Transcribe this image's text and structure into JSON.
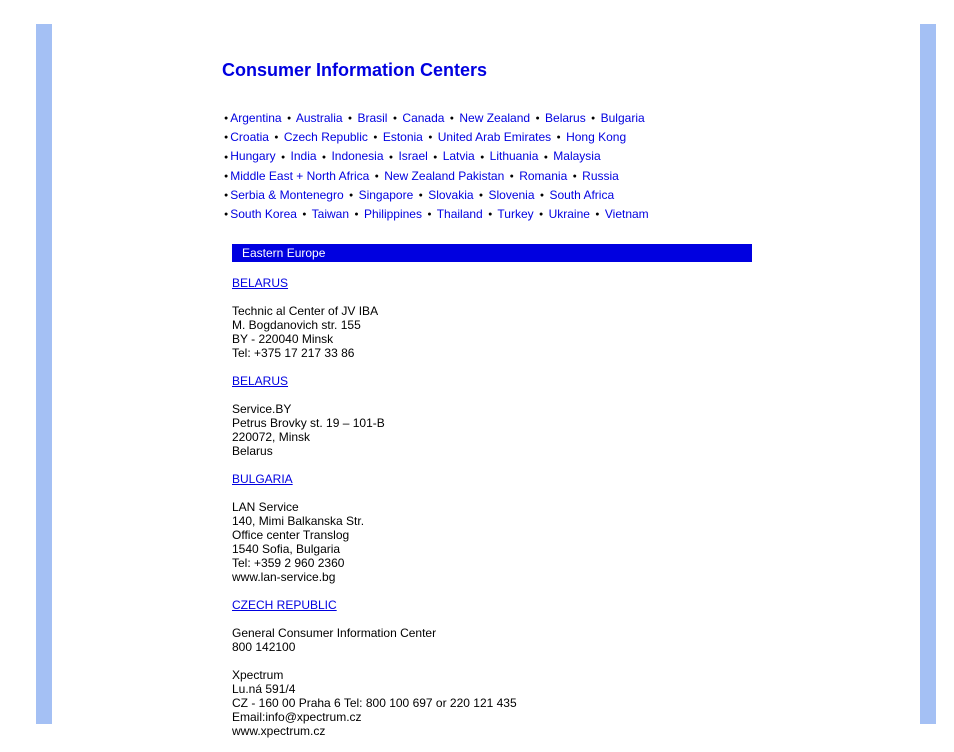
{
  "colors": {
    "link": "#0000e0",
    "band_bg": "#0000e0",
    "band_text": "#ffffff",
    "stripe": "#a4c0f4",
    "body_text": "#000000",
    "page_bg": "#ffffff"
  },
  "typography": {
    "base_family": "Arial, Helvetica, sans-serif",
    "base_size_pt": 9,
    "title_size_pt": 14,
    "title_weight": "bold"
  },
  "title": "Consumer Information Centers",
  "country_rows": [
    [
      "Argentina",
      "Australia",
      "Brasil",
      "Canada",
      "New Zealand",
      "Belarus",
      "Bulgaria"
    ],
    [
      "Croatia",
      "Czech Republic",
      "Estonia",
      "United Arab Emirates",
      "Hong Kong"
    ],
    [
      "Hungary",
      "India",
      "Indonesia",
      "Israel",
      "Latvia",
      "Lithuania",
      "Malaysia"
    ],
    [
      "Middle East + North Africa",
      "New Zealand Pakistan",
      "Romania",
      "Russia"
    ],
    [
      "Serbia & Montenegro",
      "Singapore",
      "Slovakia",
      "Slovenia",
      "South Africa"
    ],
    [
      "South Korea",
      "Taiwan",
      "Philippines",
      "Thailand",
      "Turkey",
      "Ukraine",
      "Vietnam"
    ]
  ],
  "region_label": "Eastern Europe",
  "entries": [
    {
      "heading": "BELARUS",
      "body": "Technic al Center of JV IBA\nM. Bogdanovich str. 155\nBY - 220040 Minsk\nTel: +375 17 217 33 86"
    },
    {
      "heading": "BELARUS",
      "body": "Service.BY\nPetrus Brovky st. 19 – 101-B\n220072, Minsk\nBelarus"
    },
    {
      "heading": "BULGARIA",
      "body": "LAN Service\n140, Mimi Balkanska Str.\nOffice center Translog\n1540 Sofia, Bulgaria\nTel: +359 2 960 2360\nwww.lan-service.bg"
    },
    {
      "heading": "CZECH REPUBLIC",
      "body": "General Consumer Information Center\n800 142100\n\nXpectrum\nLu.ná 591/4\nCZ - 160 00 Praha 6 Tel: 800 100 697 or 220 121 435\nEmail:info@xpectrum.cz\nwww.xpectrum.cz"
    }
  ]
}
